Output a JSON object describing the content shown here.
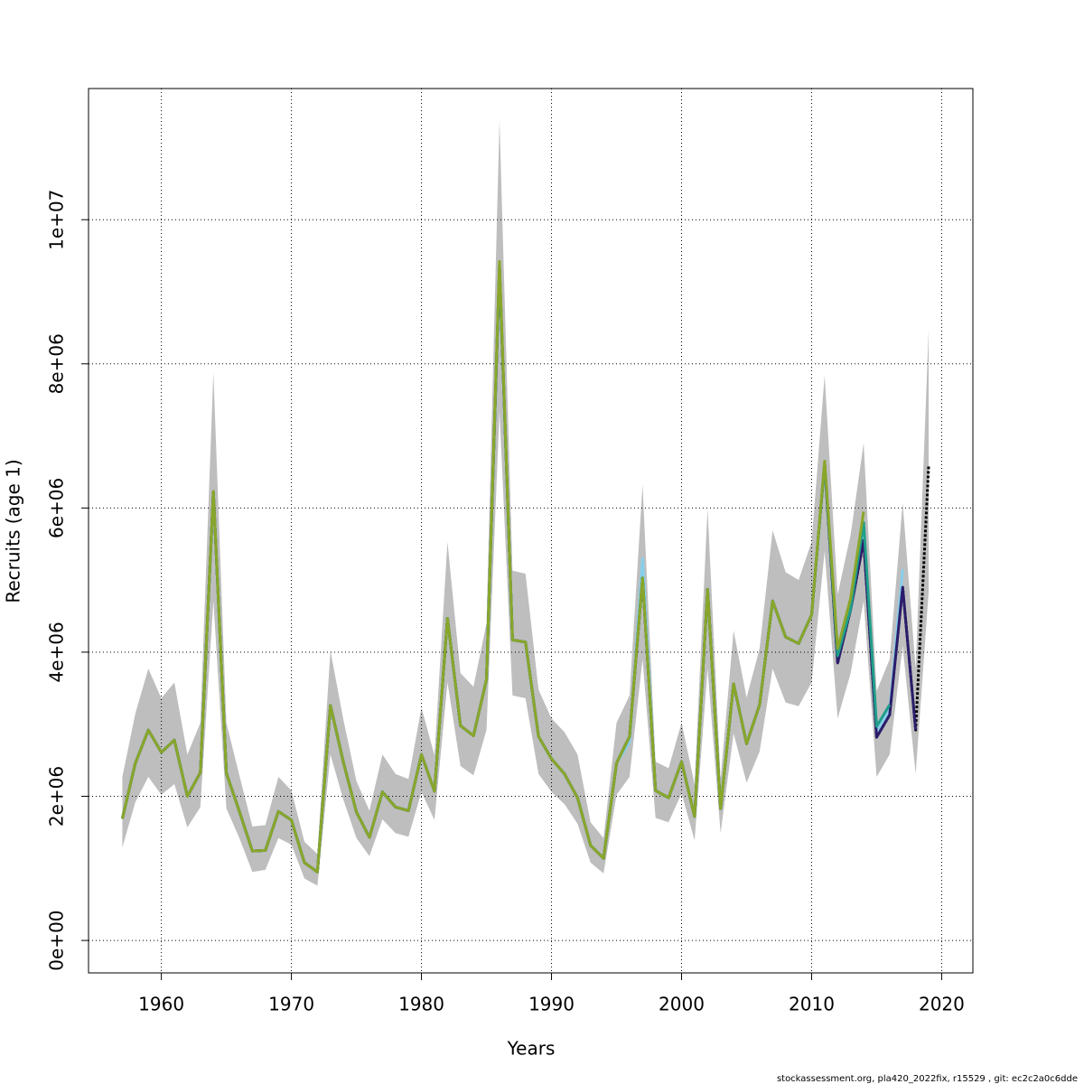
{
  "chart_data": {
    "type": "line",
    "x_label": "Years",
    "y_label": "Recruits (age 1)",
    "footer": "stockassessment.org, pla420_2022fix, r15529 , git: ec2c2a0c6dde",
    "grid": true,
    "xlim": [
      1954.4,
      2022.4
    ],
    "xticks": [
      1960,
      1970,
      1980,
      1990,
      2000,
      2010,
      2020
    ],
    "ylim": [
      -450000,
      11820000
    ],
    "yticks": [
      {
        "value": 0,
        "label": "0e+00"
      },
      {
        "value": 2000000,
        "label": "2e+06"
      },
      {
        "value": 4000000,
        "label": "4e+06"
      },
      {
        "value": 6000000,
        "label": "6e+06"
      },
      {
        "value": 8000000,
        "label": "8e+06"
      },
      {
        "value": 10000000,
        "label": "1e+07"
      }
    ],
    "x": [
      1957,
      1958,
      1959,
      1960,
      1961,
      1962,
      1963,
      1964,
      1965,
      1966,
      1967,
      1968,
      1969,
      1970,
      1971,
      1972,
      1973,
      1974,
      1975,
      1976,
      1977,
      1978,
      1979,
      1980,
      1981,
      1982,
      1983,
      1984,
      1985,
      1986,
      1987,
      1988,
      1989,
      1990,
      1991,
      1992,
      1993,
      1994,
      1995,
      1996,
      1997,
      1998,
      1999,
      2000,
      2001,
      2002,
      2003,
      2004,
      2005,
      2006,
      2007,
      2008,
      2009,
      2010,
      2011,
      2012,
      2013,
      2014,
      2015,
      2016,
      2017,
      2018,
      2019
    ],
    "band": {
      "color": "#bebebe",
      "upper": [
        2270000,
        3150000,
        3770000,
        3360000,
        3580000,
        2580000,
        3020000,
        7880000,
        3020000,
        2290000,
        1580000,
        1600000,
        2270000,
        2080000,
        1370000,
        1200000,
        4020000,
        3060000,
        2210000,
        1800000,
        2580000,
        2310000,
        2240000,
        3230000,
        2570000,
        5530000,
        3710000,
        3520000,
        4400000,
        11380000,
        5130000,
        5090000,
        3480000,
        3080000,
        2890000,
        2580000,
        1640000,
        1420000,
        3020000,
        3400000,
        6320000,
        2480000,
        2390000,
        3020000,
        2170000,
        5990000,
        2240000,
        4300000,
        3370000,
        4050000,
        5690000,
        5110000,
        5000000,
        5530000,
        7840000,
        4800000,
        5630000,
        6900000,
        3460000,
        3900000,
        6070000,
        3770000,
        8480000
      ],
      "lower": [
        1290000,
        1920000,
        2270000,
        2020000,
        2170000,
        1570000,
        1850000,
        4710000,
        1830000,
        1420000,
        950000,
        980000,
        1420000,
        1330000,
        860000,
        760000,
        2580000,
        1950000,
        1420000,
        1170000,
        1680000,
        1490000,
        1440000,
        2060000,
        1670000,
        3580000,
        2420000,
        2290000,
        2920000,
        7340000,
        3400000,
        3360000,
        2310000,
        2060000,
        1890000,
        1620000,
        1080000,
        930000,
        2020000,
        2270000,
        3900000,
        1700000,
        1640000,
        2040000,
        1390000,
        3770000,
        1490000,
        2870000,
        2190000,
        2620000,
        3770000,
        3300000,
        3250000,
        3580000,
        5400000,
        3080000,
        3710000,
        4710000,
        2270000,
        2580000,
        4090000,
        2310000,
        4840000
      ]
    },
    "series": [
      {
        "color": "#000000",
        "dashed": true,
        "values": [
          1690000,
          2460000,
          2920000,
          2610000,
          2780000,
          2000000,
          2330000,
          6220000,
          2320000,
          1790000,
          1240000,
          1250000,
          1790000,
          1670000,
          1080000,
          950000,
          3260000,
          2470000,
          1780000,
          1430000,
          2060000,
          1850000,
          1800000,
          2580000,
          2070000,
          4470000,
          2980000,
          2840000,
          3620000,
          9350000,
          4170000,
          4140000,
          2830000,
          2520000,
          2310000,
          1980000,
          1320000,
          1140000,
          2460000,
          2830000,
          5030000,
          2080000,
          1980000,
          2480000,
          1720000,
          4870000,
          1830000,
          3560000,
          2730000,
          3270000,
          4710000,
          4210000,
          4120000,
          4520000,
          6620000,
          3850000,
          4590000,
          5550000,
          2820000,
          3130000,
          4900000,
          2920000,
          6590000
        ]
      },
      {
        "color": "#87ceeb",
        "dashed": false,
        "values": [
          1690000,
          2460000,
          2920000,
          2610000,
          2780000,
          2000000,
          2330000,
          6220000,
          2320000,
          1790000,
          1240000,
          1250000,
          1790000,
          1670000,
          1080000,
          950000,
          3260000,
          2470000,
          1780000,
          1430000,
          2060000,
          1850000,
          1800000,
          2580000,
          2070000,
          4470000,
          2980000,
          2840000,
          3620000,
          9350000,
          4170000,
          4140000,
          2830000,
          2520000,
          2310000,
          1980000,
          1320000,
          1140000,
          2460000,
          2750000,
          5300000,
          2080000,
          1980000,
          2480000,
          1720000,
          4870000,
          1830000,
          3560000,
          2730000,
          3270000,
          4710000,
          4210000,
          4120000,
          4520000,
          6620000,
          3900000,
          4580000,
          5650000,
          2900000,
          3200000,
          5150000,
          null,
          null
        ]
      },
      {
        "color": "#2b1d6b",
        "dashed": false,
        "values": [
          1690000,
          2460000,
          2920000,
          2610000,
          2780000,
          2000000,
          2330000,
          6220000,
          2320000,
          1790000,
          1240000,
          1250000,
          1790000,
          1670000,
          1080000,
          950000,
          3260000,
          2470000,
          1780000,
          1430000,
          2060000,
          1850000,
          1800000,
          2580000,
          2070000,
          4470000,
          2980000,
          2840000,
          3620000,
          9350000,
          4170000,
          4140000,
          2830000,
          2520000,
          2310000,
          1980000,
          1320000,
          1140000,
          2460000,
          2830000,
          5030000,
          2080000,
          1980000,
          2480000,
          1720000,
          4870000,
          1830000,
          3560000,
          2730000,
          3270000,
          4710000,
          4210000,
          4120000,
          4520000,
          6620000,
          3850000,
          4590000,
          5550000,
          2820000,
          3130000,
          4900000,
          2920000,
          null
        ]
      },
      {
        "color": "#1f9e89",
        "dashed": false,
        "values": [
          1690000,
          2460000,
          2920000,
          2610000,
          2780000,
          2000000,
          2330000,
          6220000,
          2320000,
          1790000,
          1240000,
          1250000,
          1790000,
          1670000,
          1080000,
          950000,
          3260000,
          2470000,
          1780000,
          1430000,
          2060000,
          1850000,
          1800000,
          2580000,
          2070000,
          4470000,
          2980000,
          2840000,
          3620000,
          9350000,
          4170000,
          4140000,
          2830000,
          2520000,
          2310000,
          1980000,
          1320000,
          1140000,
          2460000,
          2830000,
          5030000,
          2080000,
          1980000,
          2480000,
          1720000,
          4870000,
          1830000,
          3560000,
          2730000,
          3270000,
          4710000,
          4210000,
          4120000,
          4520000,
          6620000,
          3950000,
          4600000,
          5800000,
          2970000,
          3270000,
          null,
          null,
          null
        ]
      },
      {
        "color": "#8aa62a",
        "dashed": false,
        "values": [
          1690000,
          2460000,
          2920000,
          2610000,
          2780000,
          2000000,
          2330000,
          6230000,
          2320000,
          1790000,
          1240000,
          1250000,
          1790000,
          1670000,
          1080000,
          950000,
          3260000,
          2470000,
          1780000,
          1430000,
          2060000,
          1850000,
          1800000,
          2580000,
          2070000,
          4470000,
          2980000,
          2840000,
          3620000,
          9420000,
          4170000,
          4140000,
          2830000,
          2520000,
          2310000,
          1980000,
          1320000,
          1140000,
          2460000,
          2830000,
          5030000,
          2080000,
          1980000,
          2480000,
          1720000,
          4870000,
          1830000,
          3560000,
          2730000,
          3270000,
          4710000,
          4210000,
          4120000,
          4520000,
          6650000,
          4050000,
          4750000,
          5950000,
          null,
          null,
          null,
          null,
          null
        ]
      }
    ]
  }
}
